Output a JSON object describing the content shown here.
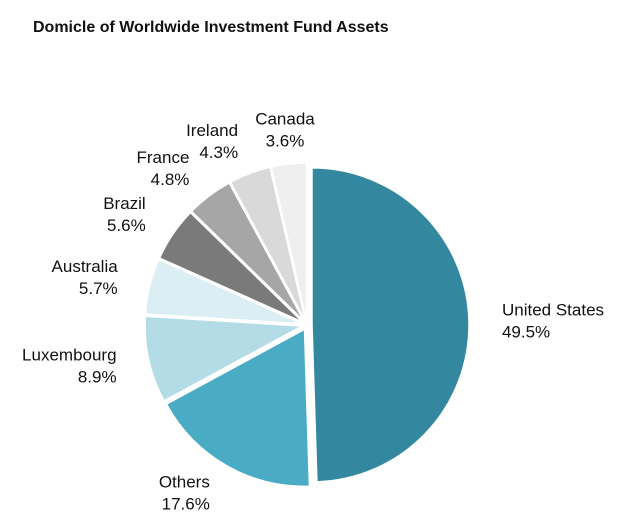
{
  "chart_data": {
    "type": "pie",
    "title": "Domicle of Worldwide Investment Fund Assets",
    "categories": [
      "United States",
      "Others",
      "Luxembourg",
      "Australia",
      "Brazil",
      "France",
      "Ireland",
      "Canada"
    ],
    "values": [
      49.5,
      17.6,
      8.9,
      5.7,
      5.6,
      4.8,
      4.3,
      3.6
    ],
    "value_labels": [
      "49.5%",
      "17.6%",
      "8.9%",
      "5.7%",
      "5.6%",
      "4.8%",
      "4.3%",
      "3.6%"
    ],
    "colors": [
      "#33879e",
      "#4aabc4",
      "#b3dce6",
      "#daeef3",
      "#7a7a7a",
      "#a6a6a6",
      "#d9d9d9",
      "#efefef"
    ]
  }
}
